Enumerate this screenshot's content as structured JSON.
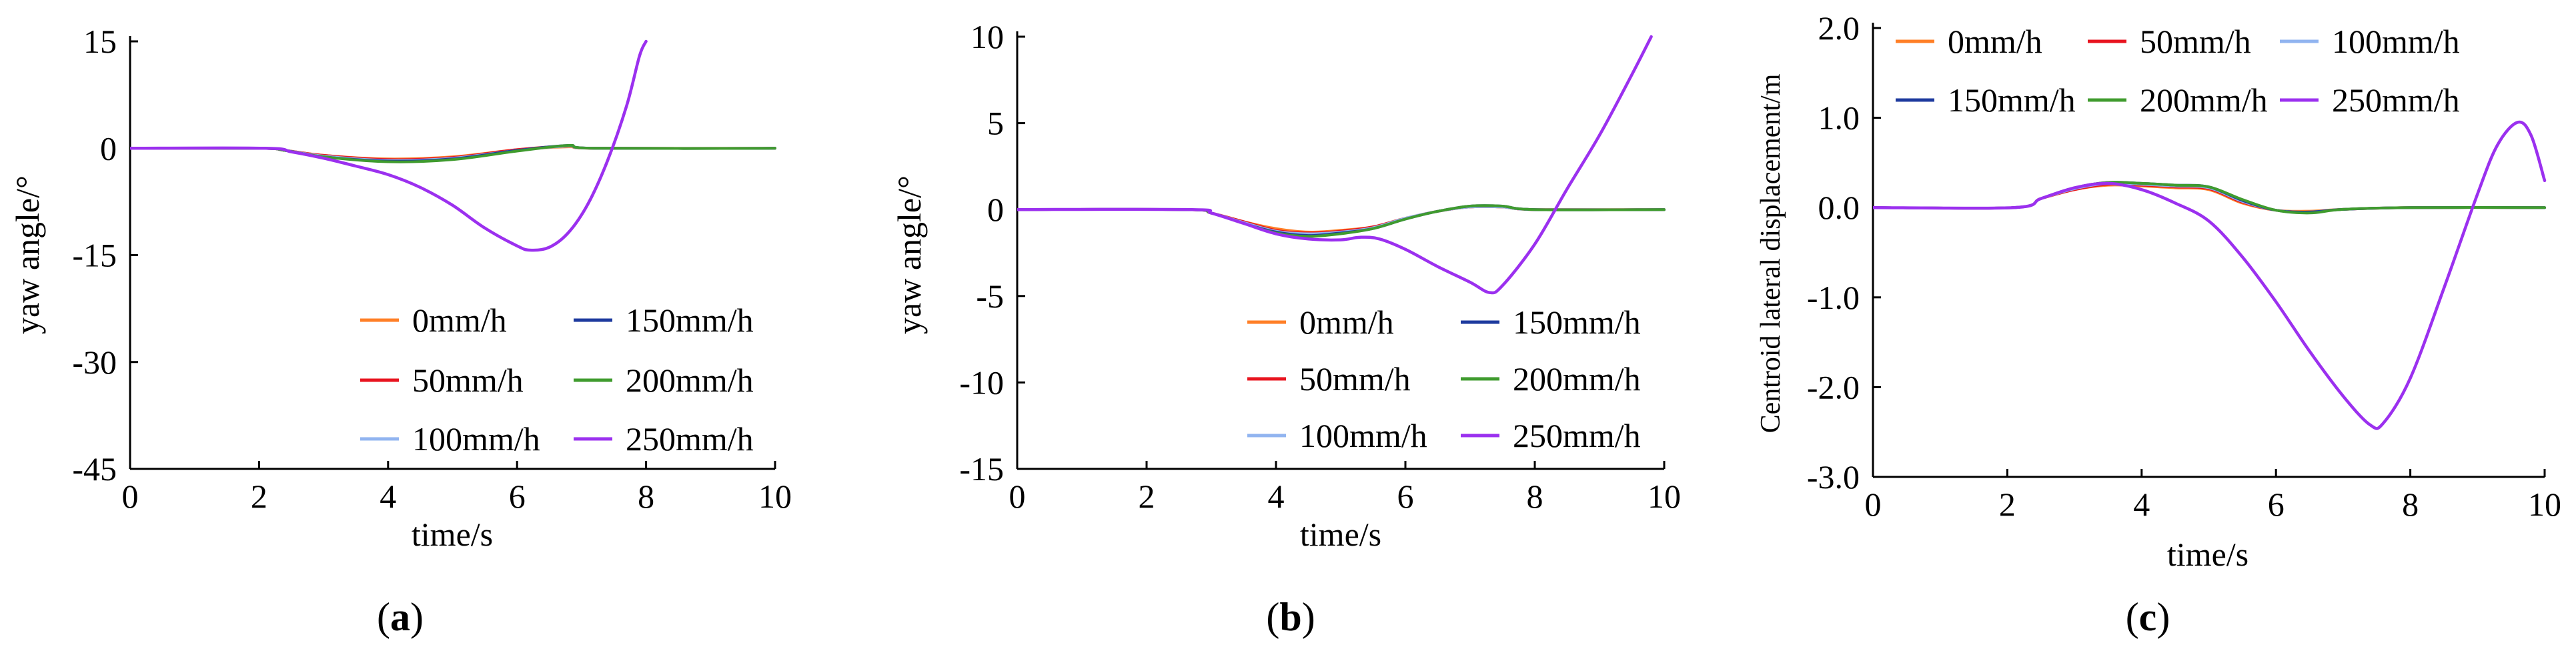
{
  "colors": {
    "0mm/h": "#ff7f27",
    "50mm/h": "#e8141f",
    "100mm/h": "#91b4f0",
    "150mm/h": "#1d3a9e",
    "200mm/h": "#3f9b2e",
    "250mm/h": "#9b30ef"
  },
  "captions": {
    "a": "a",
    "b": "b",
    "c": "c"
  },
  "chart_data": [
    {
      "id": "a",
      "type": "line",
      "xlabel": "time/s",
      "ylabel": "yaw angle/°",
      "xlim": [
        0,
        10
      ],
      "ylim": [
        -45,
        15
      ],
      "xticks": [
        0,
        2,
        4,
        6,
        8,
        10
      ],
      "yticks": [
        15,
        0,
        -15,
        -30,
        -45
      ],
      "legend": [
        "0mm/h",
        "150mm/h",
        "50mm/h",
        "200mm/h",
        "100mm/h",
        "250mm/h"
      ],
      "legend_position": "bottom-right",
      "series": [
        {
          "name": "0mm/h",
          "points": [
            [
              0,
              0
            ],
            [
              2.0,
              0
            ],
            [
              2.4,
              -0.3
            ],
            [
              3.0,
              -1.0
            ],
            [
              4.0,
              -1.5
            ],
            [
              5.0,
              -1.2
            ],
            [
              6.0,
              -0.2
            ],
            [
              6.8,
              0.2
            ],
            [
              7.2,
              0
            ],
            [
              10,
              0
            ]
          ]
        },
        {
          "name": "50mm/h",
          "points": [
            [
              0,
              0
            ],
            [
              2.0,
              0
            ],
            [
              2.4,
              -0.3
            ],
            [
              3.0,
              -1.0
            ],
            [
              4.0,
              -1.6
            ],
            [
              5.0,
              -1.3
            ],
            [
              6.0,
              -0.2
            ],
            [
              6.8,
              0.3
            ],
            [
              7.2,
              0
            ],
            [
              10,
              0
            ]
          ]
        },
        {
          "name": "100mm/h",
          "points": [
            [
              0,
              0
            ],
            [
              2.0,
              0
            ],
            [
              2.4,
              -0.3
            ],
            [
              3.0,
              -1.1
            ],
            [
              4.0,
              -1.7
            ],
            [
              5.0,
              -1.4
            ],
            [
              6.0,
              -0.3
            ],
            [
              6.8,
              0.3
            ],
            [
              7.2,
              0
            ],
            [
              10,
              0
            ]
          ]
        },
        {
          "name": "150mm/h",
          "points": [
            [
              0,
              0
            ],
            [
              2.0,
              0
            ],
            [
              2.4,
              -0.3
            ],
            [
              3.0,
              -1.2
            ],
            [
              4.0,
              -1.8
            ],
            [
              5.0,
              -1.5
            ],
            [
              6.0,
              -0.3
            ],
            [
              6.8,
              0.4
            ],
            [
              7.2,
              0
            ],
            [
              10,
              0
            ]
          ]
        },
        {
          "name": "200mm/h",
          "points": [
            [
              0,
              0
            ],
            [
              2.0,
              0
            ],
            [
              2.4,
              -0.3
            ],
            [
              3.0,
              -1.2
            ],
            [
              4.0,
              -1.9
            ],
            [
              5.0,
              -1.6
            ],
            [
              6.0,
              -0.4
            ],
            [
              6.8,
              0.4
            ],
            [
              7.2,
              0
            ],
            [
              10,
              0
            ]
          ]
        },
        {
          "name": "250mm/h",
          "points": [
            [
              0,
              0
            ],
            [
              2.1,
              0
            ],
            [
              2.5,
              -0.5
            ],
            [
              3.0,
              -1.4
            ],
            [
              3.5,
              -2.5
            ],
            [
              4.0,
              -3.7
            ],
            [
              4.5,
              -5.5
            ],
            [
              5.0,
              -8.0
            ],
            [
              5.5,
              -11.2
            ],
            [
              6.0,
              -13.7
            ],
            [
              6.2,
              -14.3
            ],
            [
              6.5,
              -13.9
            ],
            [
              6.8,
              -11.8
            ],
            [
              7.1,
              -7.8
            ],
            [
              7.4,
              -1.8
            ],
            [
              7.7,
              6.0
            ],
            [
              7.9,
              13.0
            ],
            [
              8.0,
              15.0
            ]
          ]
        }
      ]
    },
    {
      "id": "b",
      "type": "line",
      "xlabel": "time/s",
      "ylabel": "yaw angle/°",
      "xlim": [
        0,
        10
      ],
      "ylim": [
        -15,
        10
      ],
      "xticks": [
        0,
        2,
        4,
        6,
        8,
        10
      ],
      "yticks": [
        10,
        5,
        0,
        -5,
        -10,
        -15
      ],
      "legend": [
        "0mm/h",
        "150mm/h",
        "50mm/h",
        "200mm/h",
        "100mm/h",
        "250mm/h"
      ],
      "legend_position": "bottom-right",
      "series": [
        {
          "name": "0mm/h",
          "points": [
            [
              0,
              0
            ],
            [
              2.6,
              0
            ],
            [
              3.0,
              -0.2
            ],
            [
              3.5,
              -0.7
            ],
            [
              4.0,
              -1.1
            ],
            [
              4.5,
              -1.3
            ],
            [
              5.0,
              -1.2
            ],
            [
              5.5,
              -1.0
            ],
            [
              6.0,
              -0.5
            ],
            [
              6.5,
              -0.1
            ],
            [
              7.0,
              0.15
            ],
            [
              7.5,
              0.15
            ],
            [
              8.0,
              0
            ],
            [
              10,
              0
            ]
          ]
        },
        {
          "name": "50mm/h",
          "points": [
            [
              0,
              0
            ],
            [
              2.6,
              0
            ],
            [
              3.0,
              -0.2
            ],
            [
              3.5,
              -0.7
            ],
            [
              4.0,
              -1.2
            ],
            [
              4.5,
              -1.35
            ],
            [
              5.0,
              -1.25
            ],
            [
              5.5,
              -1.0
            ],
            [
              6.0,
              -0.5
            ],
            [
              6.5,
              -0.1
            ],
            [
              7.0,
              0.15
            ],
            [
              7.5,
              0.15
            ],
            [
              8.0,
              0
            ],
            [
              10,
              0
            ]
          ]
        },
        {
          "name": "100mm/h",
          "points": [
            [
              0,
              0
            ],
            [
              2.6,
              0
            ],
            [
              3.0,
              -0.2
            ],
            [
              3.5,
              -0.75
            ],
            [
              4.0,
              -1.25
            ],
            [
              4.5,
              -1.4
            ],
            [
              5.0,
              -1.3
            ],
            [
              5.5,
              -1.05
            ],
            [
              6.0,
              -0.5
            ],
            [
              6.5,
              -0.1
            ],
            [
              7.0,
              0.15
            ],
            [
              7.5,
              0.15
            ],
            [
              8.0,
              0
            ],
            [
              10,
              0
            ]
          ]
        },
        {
          "name": "150mm/h",
          "points": [
            [
              0,
              0
            ],
            [
              2.6,
              0
            ],
            [
              3.0,
              -0.2
            ],
            [
              3.5,
              -0.8
            ],
            [
              4.0,
              -1.3
            ],
            [
              4.5,
              -1.5
            ],
            [
              5.0,
              -1.35
            ],
            [
              5.5,
              -1.1
            ],
            [
              6.0,
              -0.55
            ],
            [
              6.5,
              -0.1
            ],
            [
              7.0,
              0.2
            ],
            [
              7.5,
              0.2
            ],
            [
              8.0,
              0
            ],
            [
              10,
              0
            ]
          ]
        },
        {
          "name": "200mm/h",
          "points": [
            [
              0,
              0
            ],
            [
              2.6,
              0
            ],
            [
              3.0,
              -0.2
            ],
            [
              3.5,
              -0.8
            ],
            [
              4.0,
              -1.35
            ],
            [
              4.5,
              -1.55
            ],
            [
              5.0,
              -1.4
            ],
            [
              5.5,
              -1.1
            ],
            [
              6.0,
              -0.55
            ],
            [
              6.5,
              -0.1
            ],
            [
              7.0,
              0.2
            ],
            [
              7.5,
              0.2
            ],
            [
              8.0,
              0
            ],
            [
              10,
              0
            ]
          ]
        },
        {
          "name": "250mm/h",
          "points": [
            [
              0,
              0
            ],
            [
              2.7,
              0
            ],
            [
              3.0,
              -0.2
            ],
            [
              3.5,
              -0.8
            ],
            [
              4.0,
              -1.4
            ],
            [
              4.5,
              -1.7
            ],
            [
              5.0,
              -1.75
            ],
            [
              5.3,
              -1.6
            ],
            [
              5.6,
              -1.7
            ],
            [
              6.0,
              -2.3
            ],
            [
              6.5,
              -3.3
            ],
            [
              7.0,
              -4.2
            ],
            [
              7.3,
              -4.8
            ],
            [
              7.5,
              -4.4
            ],
            [
              8.0,
              -2.0
            ],
            [
              8.5,
              1.2
            ],
            [
              9.0,
              4.3
            ],
            [
              9.5,
              7.8
            ],
            [
              9.8,
              10.0
            ]
          ]
        }
      ]
    },
    {
      "id": "c",
      "type": "line",
      "xlabel": "time/s",
      "ylabel": "Centroid lateral displacement/m",
      "xlim": [
        0,
        10
      ],
      "ylim": [
        -3.0,
        2.0
      ],
      "xticks": [
        0,
        2,
        4,
        6,
        8,
        10
      ],
      "yticks": [
        "2.0",
        "1.0",
        "0.0",
        "-1.0",
        "-2.0",
        "-3.0"
      ],
      "legend": [
        "0mm/h",
        "50mm/h",
        "100mm/h",
        "150mm/h",
        "200mm/h",
        "250mm/h"
      ],
      "legend_position": "top",
      "series": [
        {
          "name": "0mm/h",
          "points": [
            [
              0,
              0
            ],
            [
              2.1,
              0
            ],
            [
              2.5,
              0.1
            ],
            [
              3.0,
              0.2
            ],
            [
              3.5,
              0.25
            ],
            [
              4.0,
              0.24
            ],
            [
              4.5,
              0.22
            ],
            [
              5.0,
              0.2
            ],
            [
              5.5,
              0.05
            ],
            [
              6.0,
              -0.03
            ],
            [
              6.5,
              -0.04
            ],
            [
              7.0,
              -0.02
            ],
            [
              8.0,
              0
            ],
            [
              10,
              0
            ]
          ]
        },
        {
          "name": "50mm/h",
          "points": [
            [
              0,
              0
            ],
            [
              2.1,
              0
            ],
            [
              2.5,
              0.1
            ],
            [
              3.0,
              0.2
            ],
            [
              3.5,
              0.26
            ],
            [
              4.0,
              0.25
            ],
            [
              4.5,
              0.23
            ],
            [
              5.0,
              0.21
            ],
            [
              5.5,
              0.06
            ],
            [
              6.0,
              -0.03
            ],
            [
              6.5,
              -0.05
            ],
            [
              7.0,
              -0.02
            ],
            [
              8.0,
              0
            ],
            [
              10,
              0
            ]
          ]
        },
        {
          "name": "100mm/h",
          "points": [
            [
              0,
              0
            ],
            [
              2.1,
              0
            ],
            [
              2.5,
              0.1
            ],
            [
              3.0,
              0.21
            ],
            [
              3.5,
              0.27
            ],
            [
              4.0,
              0.26
            ],
            [
              4.5,
              0.24
            ],
            [
              5.0,
              0.22
            ],
            [
              5.5,
              0.07
            ],
            [
              6.0,
              -0.03
            ],
            [
              6.5,
              -0.05
            ],
            [
              7.0,
              -0.02
            ],
            [
              8.0,
              0
            ],
            [
              10,
              0
            ]
          ]
        },
        {
          "name": "150mm/h",
          "points": [
            [
              0,
              0
            ],
            [
              2.1,
              0
            ],
            [
              2.5,
              0.1
            ],
            [
              3.0,
              0.22
            ],
            [
              3.5,
              0.28
            ],
            [
              4.0,
              0.27
            ],
            [
              4.5,
              0.25
            ],
            [
              5.0,
              0.23
            ],
            [
              5.5,
              0.08
            ],
            [
              6.0,
              -0.03
            ],
            [
              6.5,
              -0.05
            ],
            [
              7.0,
              -0.02
            ],
            [
              8.0,
              0
            ],
            [
              10,
              0
            ]
          ]
        },
        {
          "name": "200mm/h",
          "points": [
            [
              0,
              0
            ],
            [
              2.1,
              0
            ],
            [
              2.5,
              0.1
            ],
            [
              3.0,
              0.22
            ],
            [
              3.5,
              0.28
            ],
            [
              4.0,
              0.27
            ],
            [
              4.5,
              0.25
            ],
            [
              5.0,
              0.23
            ],
            [
              5.5,
              0.09
            ],
            [
              6.0,
              -0.03
            ],
            [
              6.5,
              -0.06
            ],
            [
              7.0,
              -0.02
            ],
            [
              8.0,
              0
            ],
            [
              10,
              0
            ]
          ]
        },
        {
          "name": "250mm/h",
          "points": [
            [
              0,
              0
            ],
            [
              2.1,
              0
            ],
            [
              2.5,
              0.1
            ],
            [
              3.0,
              0.22
            ],
            [
              3.5,
              0.27
            ],
            [
              4.0,
              0.2
            ],
            [
              4.5,
              0.05
            ],
            [
              5.0,
              -0.15
            ],
            [
              5.5,
              -0.55
            ],
            [
              6.0,
              -1.05
            ],
            [
              6.5,
              -1.6
            ],
            [
              7.0,
              -2.1
            ],
            [
              7.4,
              -2.42
            ],
            [
              7.6,
              -2.4
            ],
            [
              8.0,
              -1.9
            ],
            [
              8.5,
              -0.9
            ],
            [
              9.0,
              0.15
            ],
            [
              9.3,
              0.7
            ],
            [
              9.6,
              0.95
            ],
            [
              9.8,
              0.8
            ],
            [
              10.0,
              0.3
            ]
          ]
        }
      ]
    }
  ]
}
